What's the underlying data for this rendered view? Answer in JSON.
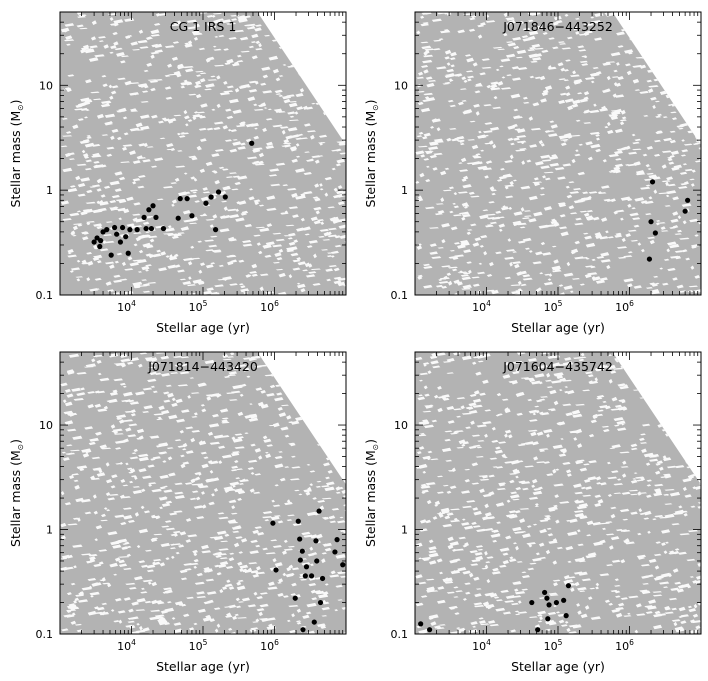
{
  "figure": {
    "xlabel_prefix": "Stellar age (",
    "xlabel_unit": "yr",
    "xlabel_suffix": ")",
    "ylabel_prefix": "Stellar mass (M",
    "ylabel_sub": "⊙",
    "ylabel_suffix": ")",
    "background_color": "#ffffff",
    "cloud_color": "#b3b3b3",
    "point_color": "#000000"
  },
  "chart_data": [
    {
      "type": "scatter",
      "title": "CG 1 IRS 1",
      "xscale": "log",
      "yscale": "log",
      "xlim": [
        1000,
        10000000
      ],
      "ylim": [
        0.1,
        50
      ],
      "xticks": [
        10000,
        100000,
        1000000
      ],
      "xtick_labels": [
        [
          "10",
          "4"
        ],
        [
          "10",
          "5"
        ],
        [
          "10",
          "6"
        ]
      ],
      "yticks": [
        0.1,
        1,
        10
      ],
      "ytick_labels": [
        "0.1",
        "1",
        "10"
      ],
      "points": [
        {
          "x": 3000,
          "y": 0.32
        },
        {
          "x": 3300,
          "y": 0.35
        },
        {
          "x": 3600,
          "y": 0.29
        },
        {
          "x": 3700,
          "y": 0.33
        },
        {
          "x": 4000,
          "y": 0.4
        },
        {
          "x": 4500,
          "y": 0.42
        },
        {
          "x": 5200,
          "y": 0.24
        },
        {
          "x": 5800,
          "y": 0.44
        },
        {
          "x": 6200,
          "y": 0.38
        },
        {
          "x": 7000,
          "y": 0.32
        },
        {
          "x": 7500,
          "y": 0.44
        },
        {
          "x": 8300,
          "y": 0.36
        },
        {
          "x": 9000,
          "y": 0.25
        },
        {
          "x": 9500,
          "y": 0.42
        },
        {
          "x": 12000,
          "y": 0.42
        },
        {
          "x": 15000,
          "y": 0.55
        },
        {
          "x": 16000,
          "y": 0.43
        },
        {
          "x": 17500,
          "y": 0.65
        },
        {
          "x": 19000,
          "y": 0.43
        },
        {
          "x": 20000,
          "y": 0.71
        },
        {
          "x": 22000,
          "y": 0.55
        },
        {
          "x": 28000,
          "y": 0.43
        },
        {
          "x": 45000,
          "y": 0.54
        },
        {
          "x": 48000,
          "y": 0.83
        },
        {
          "x": 60000,
          "y": 0.83
        },
        {
          "x": 70000,
          "y": 0.57
        },
        {
          "x": 110000,
          "y": 0.75
        },
        {
          "x": 130000,
          "y": 0.86
        },
        {
          "x": 150000,
          "y": 0.42
        },
        {
          "x": 165000,
          "y": 0.96
        },
        {
          "x": 205000,
          "y": 0.86
        },
        {
          "x": 480000,
          "y": 2.8
        }
      ]
    },
    {
      "type": "scatter",
      "title": "J071846−443252",
      "xscale": "log",
      "yscale": "log",
      "xlim": [
        1000,
        10000000
      ],
      "ylim": [
        0.1,
        50
      ],
      "xticks": [
        10000,
        100000,
        1000000
      ],
      "xtick_labels": [
        [
          "10",
          "4"
        ],
        [
          "10",
          "5"
        ],
        [
          "10",
          "6"
        ]
      ],
      "yticks": [
        0.1,
        1,
        10
      ],
      "ytick_labels": [
        "0.1",
        "1",
        "10"
      ],
      "points": [
        {
          "x": 1900000,
          "y": 0.22
        },
        {
          "x": 2000000,
          "y": 0.5
        },
        {
          "x": 2100000,
          "y": 1.2
        },
        {
          "x": 2300000,
          "y": 0.39
        },
        {
          "x": 6000000,
          "y": 0.63
        },
        {
          "x": 6500000,
          "y": 0.8
        }
      ]
    },
    {
      "type": "scatter",
      "title": "J071814−443420",
      "xscale": "log",
      "yscale": "log",
      "xlim": [
        1000,
        10000000
      ],
      "ylim": [
        0.1,
        50
      ],
      "xticks": [
        10000,
        100000,
        1000000
      ],
      "xtick_labels": [
        [
          "10",
          "4"
        ],
        [
          "10",
          "5"
        ],
        [
          "10",
          "6"
        ]
      ],
      "yticks": [
        0.1,
        1,
        10
      ],
      "ytick_labels": [
        "0.1",
        "1",
        "10"
      ],
      "points": [
        {
          "x": 950000,
          "y": 1.15
        },
        {
          "x": 1050000,
          "y": 0.41
        },
        {
          "x": 1950000,
          "y": 0.22
        },
        {
          "x": 2150000,
          "y": 1.2
        },
        {
          "x": 2250000,
          "y": 0.81
        },
        {
          "x": 2300000,
          "y": 0.51
        },
        {
          "x": 2450000,
          "y": 0.62
        },
        {
          "x": 2500000,
          "y": 0.11
        },
        {
          "x": 2700000,
          "y": 0.36
        },
        {
          "x": 2800000,
          "y": 0.44
        },
        {
          "x": 3300000,
          "y": 0.36
        },
        {
          "x": 3600000,
          "y": 0.13
        },
        {
          "x": 3800000,
          "y": 0.78
        },
        {
          "x": 3900000,
          "y": 0.5
        },
        {
          "x": 4200000,
          "y": 1.5
        },
        {
          "x": 4400000,
          "y": 0.2
        },
        {
          "x": 4700000,
          "y": 0.34
        },
        {
          "x": 7000000,
          "y": 0.61
        },
        {
          "x": 7500000,
          "y": 0.8
        },
        {
          "x": 9000000,
          "y": 0.46
        }
      ]
    },
    {
      "type": "scatter",
      "title": "J071604−435742",
      "xscale": "log",
      "yscale": "log",
      "xlim": [
        1000,
        10000000
      ],
      "ylim": [
        0.1,
        50
      ],
      "xticks": [
        10000,
        100000,
        1000000
      ],
      "xtick_labels": [
        [
          "10",
          "4"
        ],
        [
          "10",
          "5"
        ],
        [
          "10",
          "6"
        ]
      ],
      "yticks": [
        0.1,
        1,
        10
      ],
      "ytick_labels": [
        "0.1",
        "1",
        "10"
      ],
      "points": [
        {
          "x": 1200,
          "y": 0.125
        },
        {
          "x": 1600,
          "y": 0.11
        },
        {
          "x": 43000,
          "y": 0.2
        },
        {
          "x": 52000,
          "y": 0.11
        },
        {
          "x": 65000,
          "y": 0.25
        },
        {
          "x": 70000,
          "y": 0.22
        },
        {
          "x": 72000,
          "y": 0.14
        },
        {
          "x": 75000,
          "y": 0.19
        },
        {
          "x": 95000,
          "y": 0.2
        },
        {
          "x": 120000,
          "y": 0.21
        },
        {
          "x": 130000,
          "y": 0.15
        },
        {
          "x": 140000,
          "y": 0.29
        }
      ]
    }
  ]
}
